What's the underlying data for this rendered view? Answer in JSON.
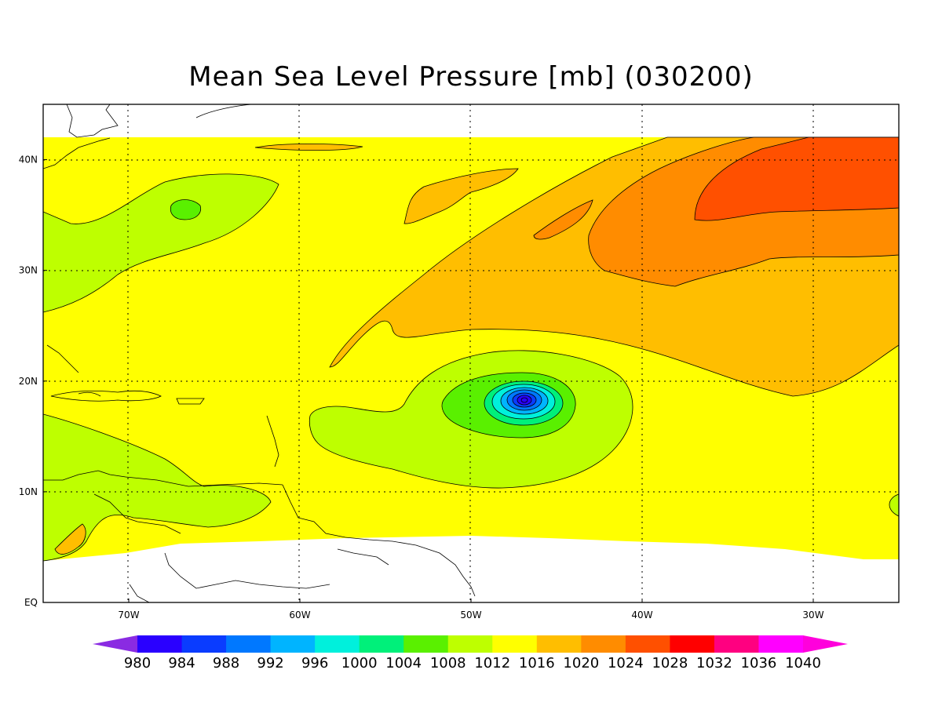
{
  "title": "Mean Sea Level Pressure [mb] (030200)",
  "map": {
    "lat_labels": [
      "40N",
      "30N",
      "20N",
      "10N",
      "EQ"
    ],
    "lon_labels": [
      "70W",
      "60W",
      "50W",
      "40W",
      "30W"
    ],
    "lat_values": [
      40,
      30,
      20,
      10,
      0
    ],
    "lon_values": [
      -70,
      -60,
      -50,
      -40,
      -30
    ],
    "extent": {
      "lon_min": -75,
      "lon_max": -25,
      "lat_min": 0,
      "lat_max": 45
    },
    "field": "mean sea level pressure",
    "low_center": {
      "lon": -47,
      "lat": 18.3
    }
  },
  "colorbar": {
    "levels": [
      "980",
      "984",
      "988",
      "992",
      "996",
      "1000",
      "1004",
      "1008",
      "1012",
      "1016",
      "1020",
      "1024",
      "1028",
      "1032",
      "1036",
      "1040"
    ],
    "colors": [
      "#8a2be2",
      "#2a00ff",
      "#0a3cff",
      "#0078ff",
      "#00b4ff",
      "#00f0dc",
      "#00f07a",
      "#5af000",
      "#beff00",
      "#ffff00",
      "#ffbe00",
      "#ff8c00",
      "#ff5000",
      "#ff0000",
      "#ff0080",
      "#ff00ff",
      "#ff00dc"
    ]
  }
}
